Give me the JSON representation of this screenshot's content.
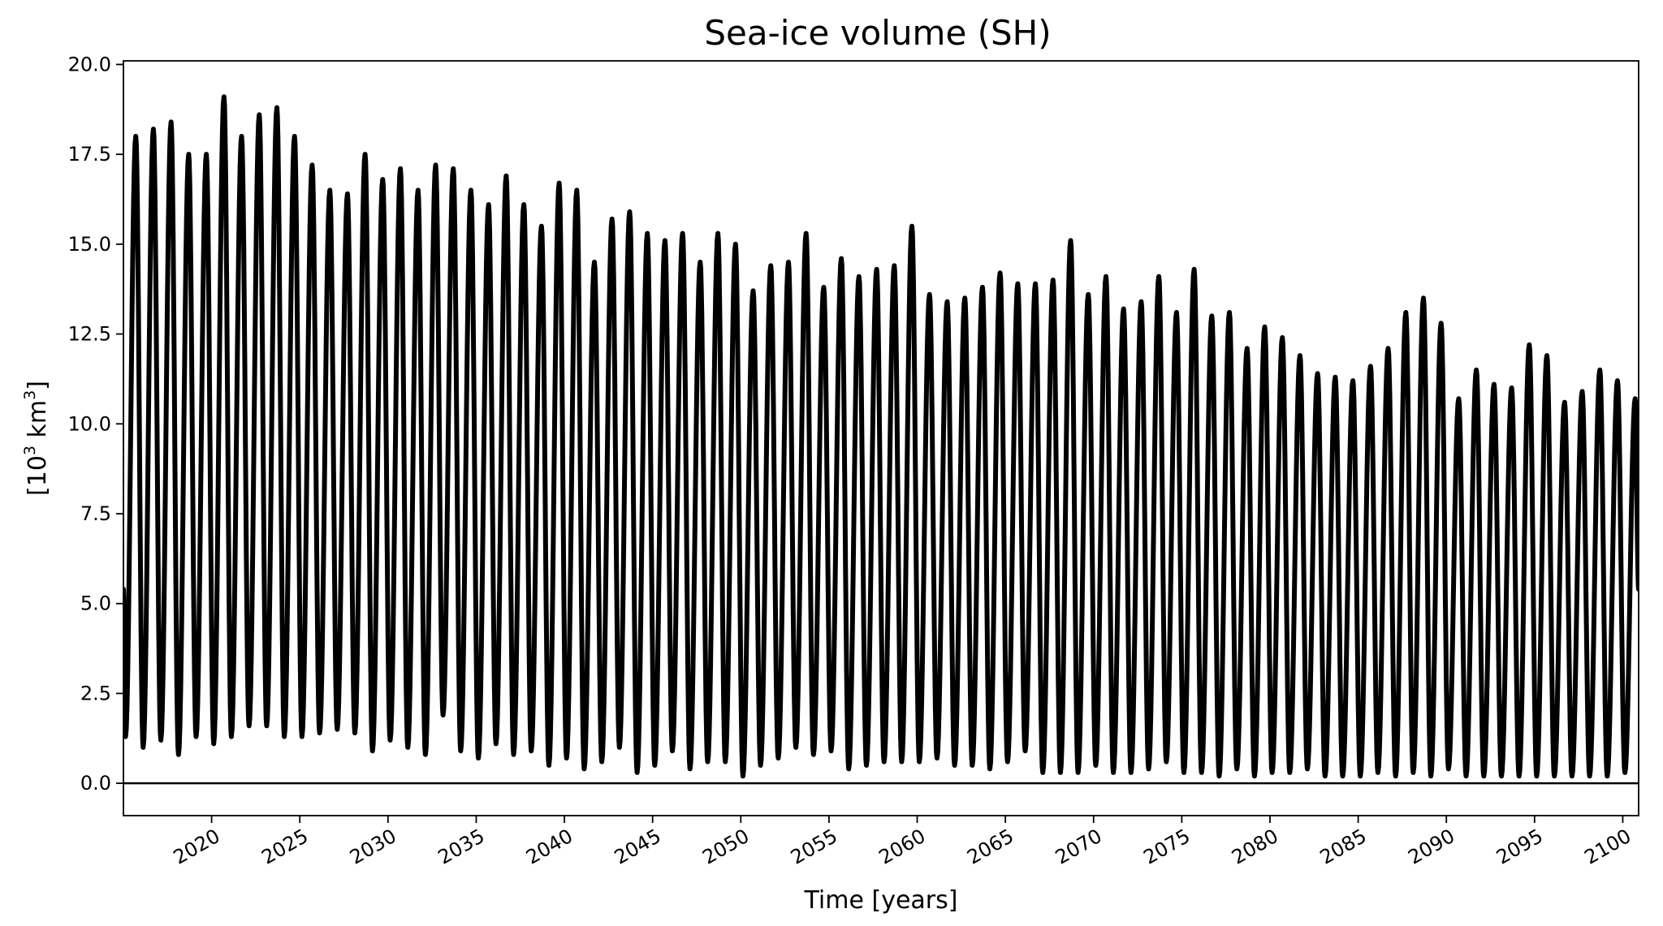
{
  "chart_data": {
    "type": "line",
    "title": "Sea-ice volume (SH)",
    "xlabel": "Time [years]",
    "ylabel_base": "[10",
    "ylabel_sup1": "3",
    "ylabel_mid": " km",
    "ylabel_sup2": "3",
    "ylabel_end": "]",
    "xlim": [
      2015,
      2100.9
    ],
    "ylim": [
      -0.9,
      20.1
    ],
    "xticks": [
      2020,
      2025,
      2030,
      2035,
      2040,
      2045,
      2050,
      2055,
      2060,
      2065,
      2070,
      2075,
      2080,
      2085,
      2090,
      2095,
      2100
    ],
    "xtick_labels": [
      "2020",
      "2025",
      "2030",
      "2035",
      "2040",
      "2045",
      "2050",
      "2055",
      "2060",
      "2065",
      "2070",
      "2075",
      "2080",
      "2085",
      "2090",
      "2095",
      "2100"
    ],
    "yticks": [
      0,
      2.5,
      5,
      7.5,
      10,
      12.5,
      15,
      17.5,
      20
    ],
    "ytick_labels": [
      "0.0",
      "2.5",
      "5.0",
      "7.5",
      "10.0",
      "12.5",
      "15.0",
      "17.5",
      "20.0"
    ],
    "reference_line_y": 0,
    "line_color": "#000000",
    "grid": false,
    "legend": "none",
    "series": [
      {
        "time_start": 2015.0,
        "time_end": 2100.9,
        "start_value": 5.4,
        "end_value": 5.4,
        "annual_max": [
          18.0,
          18.2,
          18.4,
          17.5,
          17.5,
          19.1,
          18.0,
          18.6,
          18.8,
          18.0,
          17.2,
          16.5,
          16.4,
          17.5,
          16.8,
          17.1,
          16.5,
          17.2,
          17.1,
          16.5,
          16.1,
          16.9,
          16.1,
          15.5,
          16.7,
          16.5,
          14.5,
          15.7,
          15.9,
          15.3,
          15.1,
          15.3,
          14.5,
          15.3,
          15.0,
          13.7,
          14.4,
          14.5,
          15.3,
          13.8,
          14.6,
          14.1,
          14.3,
          14.4,
          15.5,
          13.6,
          13.4,
          13.5,
          13.8,
          14.2,
          13.9,
          13.9,
          14.0,
          15.1,
          13.6,
          14.1,
          13.2,
          13.4,
          14.1,
          13.1,
          14.3,
          13.0,
          13.1,
          12.1,
          12.7,
          12.4,
          11.9,
          11.4,
          11.3,
          11.2,
          11.6,
          12.1,
          13.1,
          13.5,
          12.8,
          10.7,
          11.5,
          11.1,
          11.0,
          12.2,
          11.9,
          10.6,
          10.9,
          11.5,
          11.2,
          10.7
        ],
        "annual_min": [
          1.3,
          1.0,
          1.2,
          0.8,
          1.3,
          1.1,
          1.3,
          1.6,
          1.6,
          1.3,
          1.3,
          1.4,
          1.5,
          1.4,
          0.9,
          1.2,
          1.0,
          0.8,
          1.9,
          0.9,
          0.7,
          1.1,
          0.8,
          0.9,
          0.5,
          0.7,
          0.4,
          0.6,
          1.0,
          0.3,
          0.5,
          0.9,
          0.4,
          0.6,
          0.6,
          0.2,
          0.5,
          0.7,
          1.0,
          0.8,
          0.9,
          0.4,
          0.5,
          0.6,
          0.6,
          0.6,
          0.7,
          0.5,
          0.5,
          0.4,
          0.6,
          0.9,
          0.3,
          0.3,
          0.3,
          0.5,
          0.3,
          0.3,
          0.4,
          0.6,
          0.3,
          0.3,
          0.2,
          0.4,
          0.2,
          0.3,
          0.3,
          0.4,
          0.2,
          0.2,
          0.2,
          0.3,
          0.2,
          0.3,
          0.2,
          0.4,
          0.2,
          0.2,
          0.2,
          0.2,
          0.2,
          0.2,
          0.2,
          0.2,
          0.2,
          0.3
        ]
      }
    ]
  }
}
